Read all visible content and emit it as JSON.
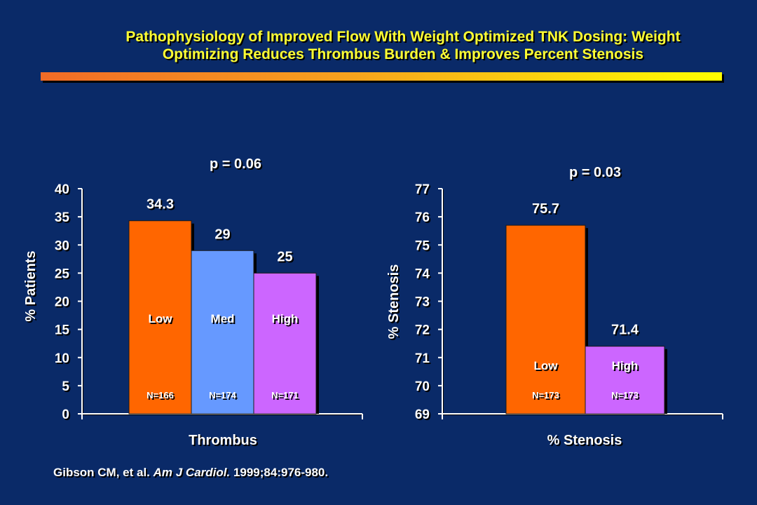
{
  "title": {
    "line1": "Pathophysiology of Improved Flow With Weight Optimized TNK Dosing: Weight",
    "line2": "Optimizing Reduces Thrombus Burden & Improves Percent Stenosis"
  },
  "citation": {
    "authors": "Gibson CM, et al. ",
    "journal": "Am J Cardiol.",
    "ref": " 1999;84:976-980."
  },
  "colors": {
    "background": "#0a2a68",
    "title": "#ffff33",
    "low": "#ff6600",
    "med": "#6699ff",
    "high": "#cc66ff"
  },
  "chart_data": [
    {
      "type": "bar",
      "annotation": "p = 0.06",
      "xlabel": "Thrombus",
      "ylabel": "% Patients",
      "ylim": [
        0,
        40
      ],
      "yticks": [
        0,
        5,
        10,
        15,
        20,
        25,
        30,
        35,
        40
      ],
      "categories": [
        "Low",
        "Med",
        "High"
      ],
      "values": [
        34.3,
        29,
        25
      ],
      "value_labels": [
        "34.3",
        "29",
        "25"
      ],
      "n_labels": [
        "N=166",
        "N=174",
        "N=171"
      ],
      "colors": [
        "#ff6600",
        "#6699ff",
        "#cc66ff"
      ]
    },
    {
      "type": "bar",
      "annotation": "p = 0.03",
      "xlabel": "% Stenosis",
      "ylabel": "% Stenosis",
      "ylim": [
        69,
        77
      ],
      "yticks": [
        69,
        70,
        71,
        72,
        73,
        74,
        75,
        76,
        77
      ],
      "categories": [
        "Low",
        "High"
      ],
      "values": [
        75.7,
        71.4
      ],
      "value_labels": [
        "75.7",
        "71.4"
      ],
      "n_labels": [
        "N=173",
        "N=173"
      ],
      "colors": [
        "#ff6600",
        "#cc66ff"
      ]
    }
  ]
}
